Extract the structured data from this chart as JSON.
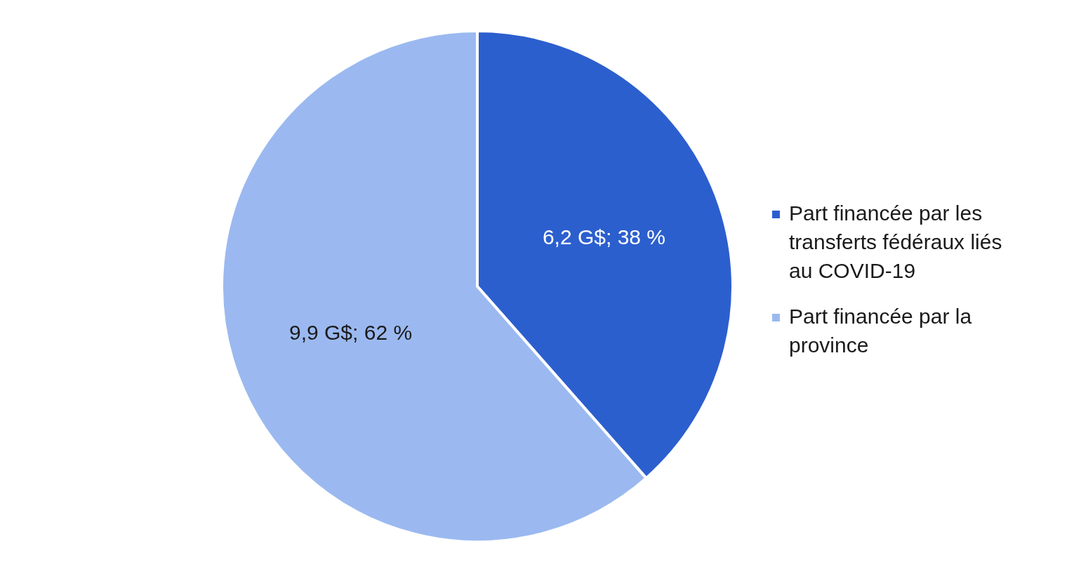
{
  "chart_data": {
    "type": "pie",
    "categories": [
      "Part financée par les transferts fédéraux liés au COVID-19",
      "Part financée par la province"
    ],
    "values": [
      6.2,
      9.9
    ],
    "value_labels": [
      "6,2 G$; 38 %",
      "9,9 G$; 62 %"
    ],
    "colors": [
      "#2c5fce",
      "#9bb9f0"
    ],
    "legend": "right"
  }
}
